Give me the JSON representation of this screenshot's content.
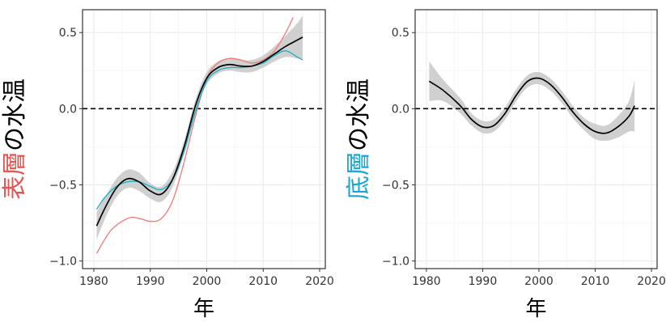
{
  "chart_data": [
    {
      "type": "line",
      "xlabel": "年",
      "ylabel_parts": [
        {
          "text": "表層",
          "color": "#e8534f"
        },
        {
          "text": "の水温",
          "color": "#000000"
        }
      ],
      "xlim": [
        1978,
        2021
      ],
      "ylim": [
        -1.05,
        0.65
      ],
      "xticks": [
        1980,
        1990,
        2000,
        2010,
        2020
      ],
      "yticks": [
        {
          "value": 0.5,
          "label": "0.5"
        },
        {
          "value": 0.0,
          "label": "0.0"
        },
        {
          "value": -0.5,
          "label": "−0.5"
        },
        {
          "value": -1.0,
          "label": "−1.0"
        }
      ],
      "reference_line": {
        "y": 0,
        "style": "dashed"
      },
      "grid": true,
      "series": [
        {
          "color": "#f08080",
          "x": [
            1980.5,
            1983,
            1986,
            1988,
            1990,
            1992,
            1994,
            1996,
            1998,
            2000,
            2002,
            2004,
            2006,
            2008,
            2010,
            2012,
            2014,
            2015.3
          ],
          "y": [
            -0.95,
            -0.8,
            -0.72,
            -0.72,
            -0.74,
            -0.72,
            -0.6,
            -0.35,
            -0.05,
            0.2,
            0.3,
            0.33,
            0.32,
            0.3,
            0.32,
            0.38,
            0.5,
            0.6
          ]
        },
        {
          "color": "#1fb3c4",
          "x": [
            1980.5,
            1982,
            1984,
            1986,
            1988,
            1990,
            1992,
            1994,
            1996,
            1998,
            2000,
            2002,
            2004,
            2006,
            2008,
            2010,
            2012,
            2014,
            2016,
            2017
          ],
          "y": [
            -0.66,
            -0.58,
            -0.51,
            -0.48,
            -0.48,
            -0.51,
            -0.53,
            -0.46,
            -0.28,
            -0.02,
            0.18,
            0.25,
            0.27,
            0.27,
            0.28,
            0.3,
            0.35,
            0.38,
            0.34,
            0.32
          ]
        },
        {
          "color": "#000000",
          "x": [
            1980.5,
            1982,
            1984,
            1986,
            1988,
            1990,
            1992,
            1994,
            1996,
            1998,
            2000,
            2002,
            2004,
            2006,
            2008,
            2010,
            2012,
            2014,
            2016,
            2017
          ],
          "y": [
            -0.77,
            -0.65,
            -0.52,
            -0.46,
            -0.48,
            -0.54,
            -0.56,
            -0.46,
            -0.25,
            0.02,
            0.2,
            0.27,
            0.29,
            0.28,
            0.28,
            0.31,
            0.36,
            0.41,
            0.45,
            0.47
          ]
        }
      ],
      "band": {
        "color": "#c8c8c8",
        "x": [
          1980.5,
          1982,
          1984,
          1986,
          1988,
          1990,
          1992,
          1994,
          1996,
          1998,
          2000,
          2002,
          2004,
          2006,
          2008,
          2010,
          2012,
          2014,
          2016,
          2017
        ],
        "lower": [
          -0.86,
          -0.72,
          -0.58,
          -0.52,
          -0.54,
          -0.59,
          -0.61,
          -0.51,
          -0.29,
          -0.02,
          0.16,
          0.23,
          0.25,
          0.24,
          0.24,
          0.27,
          0.31,
          0.34,
          0.33,
          0.33
        ],
        "upper": [
          -0.68,
          -0.58,
          -0.46,
          -0.4,
          -0.42,
          -0.49,
          -0.51,
          -0.41,
          -0.21,
          0.06,
          0.24,
          0.31,
          0.33,
          0.32,
          0.32,
          0.35,
          0.41,
          0.48,
          0.56,
          0.61
        ]
      }
    },
    {
      "type": "line",
      "xlabel": "年",
      "ylabel_parts": [
        {
          "text": "底層",
          "color": "#1aa5d8"
        },
        {
          "text": "の水温",
          "color": "#000000"
        }
      ],
      "xlim": [
        1978,
        2021
      ],
      "ylim": [
        -1.05,
        0.65
      ],
      "xticks": [
        1980,
        1990,
        2000,
        2010,
        2020
      ],
      "yticks": [
        {
          "value": 0.5,
          "label": "0.5"
        },
        {
          "value": 0.0,
          "label": "0.0"
        },
        {
          "value": -0.5,
          "label": "−0.5"
        },
        {
          "value": -1.0,
          "label": "−1.0"
        }
      ],
      "reference_line": {
        "y": 0,
        "style": "dashed"
      },
      "grid": true,
      "series": [
        {
          "color": "#000000",
          "x": [
            1980.5,
            1983,
            1986,
            1988,
            1990,
            1992,
            1994,
            1996,
            1998,
            2000,
            2002,
            2004,
            2006,
            2008,
            2010,
            2012,
            2014,
            2016,
            2017
          ],
          "y": [
            0.18,
            0.12,
            0.02,
            -0.07,
            -0.12,
            -0.11,
            -0.03,
            0.09,
            0.18,
            0.2,
            0.16,
            0.08,
            -0.02,
            -0.1,
            -0.15,
            -0.16,
            -0.12,
            -0.05,
            0.02
          ]
        }
      ],
      "band": {
        "color": "#c8c8c8",
        "x": [
          1980.5,
          1983,
          1986,
          1988,
          1990,
          1992,
          1994,
          1996,
          1998,
          2000,
          2002,
          2004,
          2006,
          2008,
          2010,
          2012,
          2014,
          2016,
          2017
        ],
        "lower": [
          0.05,
          0.05,
          -0.03,
          -0.11,
          -0.16,
          -0.15,
          -0.07,
          0.05,
          0.14,
          0.16,
          0.12,
          0.04,
          -0.06,
          -0.14,
          -0.2,
          -0.21,
          -0.19,
          -0.15,
          -0.15
        ],
        "upper": [
          0.31,
          0.19,
          0.07,
          -0.03,
          -0.08,
          -0.07,
          0.01,
          0.13,
          0.22,
          0.24,
          0.2,
          0.12,
          0.02,
          -0.06,
          -0.1,
          -0.11,
          -0.05,
          0.05,
          0.19
        ]
      }
    }
  ]
}
